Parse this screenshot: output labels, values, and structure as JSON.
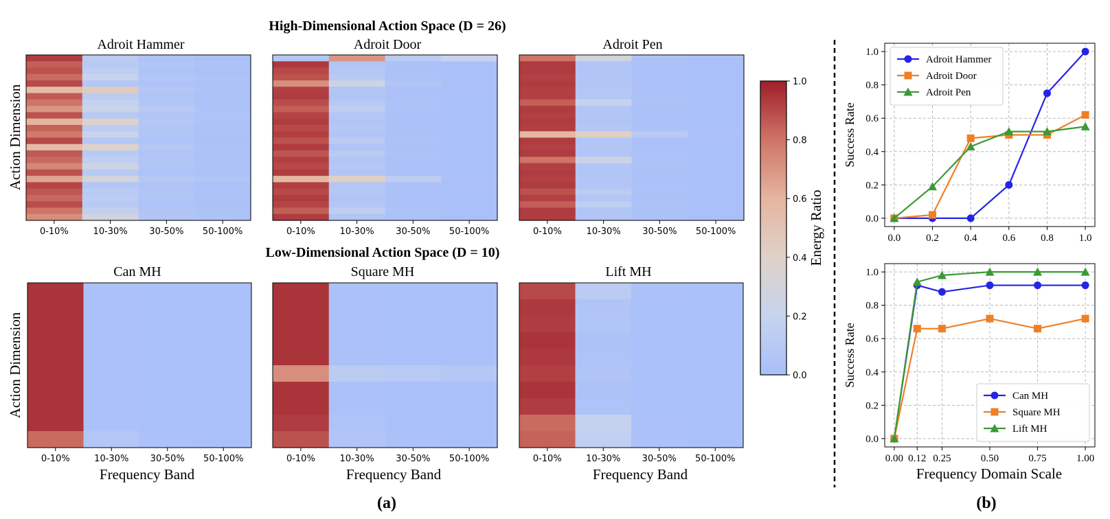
{
  "panel_a": {
    "label": "(a)",
    "high_title": "High-Dimensional Action Space (D = 26)",
    "low_title": "Low-Dimensional Action Space (D = 10)",
    "ylabel": "Action Dimension",
    "xlabel": "Frequency Band",
    "bands": [
      "0-10%",
      "10-30%",
      "30-50%",
      "50-100%"
    ]
  },
  "colorbar": {
    "label": "Energy Ratio",
    "ticks": [
      "0.0",
      "0.2",
      "0.4",
      "0.6",
      "0.8",
      "1.0"
    ],
    "stops": [
      "#a8bff9",
      "#c7d3ee",
      "#dfd2c8",
      "#e5b5a0",
      "#cf7466",
      "#9e1e2b"
    ]
  },
  "panel_b": {
    "label": "(b)",
    "ylabel": "Success Rate",
    "xlabel": "Frequency Domain Scale",
    "colors": {
      "blue": "#2424e6",
      "orange": "#f07f24",
      "green": "#3a9a36"
    }
  },
  "chart_data": [
    {
      "type": "heatmap",
      "title": "Adroit Hammer",
      "rows": 26,
      "columns": [
        "0-10%",
        "10-30%",
        "30-50%",
        "50-100%"
      ],
      "values": [
        [
          0.93,
          0.12,
          0.04,
          0.02
        ],
        [
          0.85,
          0.1,
          0.06,
          0.03
        ],
        [
          0.88,
          0.14,
          0.04,
          0.02
        ],
        [
          0.82,
          0.2,
          0.06,
          0.04
        ],
        [
          0.9,
          0.08,
          0.04,
          0.02
        ],
        [
          0.55,
          0.45,
          0.07,
          0.04
        ],
        [
          0.86,
          0.12,
          0.05,
          0.03
        ],
        [
          0.8,
          0.18,
          0.06,
          0.03
        ],
        [
          0.7,
          0.22,
          0.1,
          0.04
        ],
        [
          0.88,
          0.1,
          0.06,
          0.04
        ],
        [
          0.6,
          0.38,
          0.08,
          0.04
        ],
        [
          0.84,
          0.13,
          0.06,
          0.03
        ],
        [
          0.78,
          0.21,
          0.06,
          0.03
        ],
        [
          0.9,
          0.08,
          0.04,
          0.02
        ],
        [
          0.55,
          0.4,
          0.08,
          0.04
        ],
        [
          0.86,
          0.11,
          0.05,
          0.03
        ],
        [
          0.82,
          0.15,
          0.06,
          0.03
        ],
        [
          0.74,
          0.26,
          0.06,
          0.04
        ],
        [
          0.88,
          0.1,
          0.04,
          0.02
        ],
        [
          0.65,
          0.3,
          0.09,
          0.06
        ],
        [
          0.91,
          0.07,
          0.04,
          0.02
        ],
        [
          0.87,
          0.11,
          0.05,
          0.03
        ],
        [
          0.83,
          0.13,
          0.06,
          0.03
        ],
        [
          0.89,
          0.1,
          0.04,
          0.02
        ],
        [
          0.8,
          0.17,
          0.05,
          0.03
        ],
        [
          0.72,
          0.28,
          0.06,
          0.04
        ]
      ]
    },
    {
      "type": "heatmap",
      "title": "Adroit Door",
      "rows": 26,
      "columns": [
        "0-10%",
        "10-30%",
        "30-50%",
        "50-100%"
      ],
      "values": [
        [
          0.08,
          0.7,
          0.12,
          0.2
        ],
        [
          0.94,
          0.06,
          0.02,
          0.01
        ],
        [
          0.9,
          0.08,
          0.02,
          0.01
        ],
        [
          0.88,
          0.1,
          0.03,
          0.01
        ],
        [
          0.72,
          0.25,
          0.05,
          0.02
        ],
        [
          0.92,
          0.06,
          0.02,
          0.01
        ],
        [
          0.93,
          0.05,
          0.02,
          0.01
        ],
        [
          0.89,
          0.09,
          0.03,
          0.01
        ],
        [
          0.85,
          0.14,
          0.03,
          0.01
        ],
        [
          0.91,
          0.07,
          0.02,
          0.01
        ],
        [
          0.93,
          0.06,
          0.02,
          0.01
        ],
        [
          0.9,
          0.08,
          0.02,
          0.01
        ],
        [
          0.92,
          0.06,
          0.02,
          0.01
        ],
        [
          0.88,
          0.12,
          0.03,
          0.01
        ],
        [
          0.93,
          0.05,
          0.02,
          0.01
        ],
        [
          0.87,
          0.11,
          0.03,
          0.01
        ],
        [
          0.92,
          0.06,
          0.02,
          0.01
        ],
        [
          0.9,
          0.08,
          0.02,
          0.01
        ],
        [
          0.93,
          0.06,
          0.02,
          0.01
        ],
        [
          0.58,
          0.42,
          0.14,
          0.02
        ],
        [
          0.92,
          0.07,
          0.02,
          0.01
        ],
        [
          0.9,
          0.08,
          0.02,
          0.01
        ],
        [
          0.93,
          0.06,
          0.02,
          0.01
        ],
        [
          0.91,
          0.07,
          0.02,
          0.01
        ],
        [
          0.85,
          0.15,
          0.03,
          0.01
        ],
        [
          0.93,
          0.06,
          0.02,
          0.01
        ]
      ]
    },
    {
      "type": "heatmap",
      "title": "Adroit Pen",
      "rows": 26,
      "columns": [
        "0-10%",
        "10-30%",
        "30-50%",
        "50-100%"
      ],
      "values": [
        [
          0.8,
          0.28,
          0.03,
          0.01
        ],
        [
          0.93,
          0.06,
          0.02,
          0.01
        ],
        [
          0.93,
          0.06,
          0.02,
          0.01
        ],
        [
          0.92,
          0.07,
          0.02,
          0.01
        ],
        [
          0.93,
          0.06,
          0.02,
          0.01
        ],
        [
          0.92,
          0.07,
          0.02,
          0.01
        ],
        [
          0.92,
          0.08,
          0.02,
          0.01
        ],
        [
          0.85,
          0.2,
          0.03,
          0.01
        ],
        [
          0.93,
          0.06,
          0.02,
          0.01
        ],
        [
          0.92,
          0.07,
          0.02,
          0.01
        ],
        [
          0.93,
          0.06,
          0.02,
          0.01
        ],
        [
          0.92,
          0.08,
          0.03,
          0.01
        ],
        [
          0.58,
          0.42,
          0.1,
          0.02
        ],
        [
          0.93,
          0.06,
          0.02,
          0.01
        ],
        [
          0.92,
          0.07,
          0.02,
          0.01
        ],
        [
          0.93,
          0.06,
          0.02,
          0.01
        ],
        [
          0.8,
          0.25,
          0.03,
          0.01
        ],
        [
          0.92,
          0.07,
          0.02,
          0.01
        ],
        [
          0.93,
          0.06,
          0.02,
          0.01
        ],
        [
          0.92,
          0.07,
          0.02,
          0.01
        ],
        [
          0.93,
          0.06,
          0.02,
          0.01
        ],
        [
          0.88,
          0.12,
          0.03,
          0.01
        ],
        [
          0.92,
          0.07,
          0.02,
          0.01
        ],
        [
          0.85,
          0.15,
          0.03,
          0.01
        ],
        [
          0.93,
          0.06,
          0.02,
          0.01
        ],
        [
          0.93,
          0.06,
          0.02,
          0.01
        ]
      ]
    },
    {
      "type": "heatmap",
      "title": "Can MH",
      "rows": 10,
      "columns": [
        "0-10%",
        "10-30%",
        "30-50%",
        "50-100%"
      ],
      "values": [
        [
          0.95,
          0.02,
          0.01,
          0.01
        ],
        [
          0.95,
          0.02,
          0.01,
          0.01
        ],
        [
          0.95,
          0.02,
          0.01,
          0.01
        ],
        [
          0.95,
          0.02,
          0.01,
          0.01
        ],
        [
          0.95,
          0.02,
          0.01,
          0.01
        ],
        [
          0.95,
          0.02,
          0.01,
          0.01
        ],
        [
          0.95,
          0.02,
          0.01,
          0.01
        ],
        [
          0.95,
          0.02,
          0.01,
          0.01
        ],
        [
          0.95,
          0.02,
          0.01,
          0.01
        ],
        [
          0.82,
          0.07,
          0.02,
          0.01
        ]
      ]
    },
    {
      "type": "heatmap",
      "title": "Square MH",
      "rows": 10,
      "columns": [
        "0-10%",
        "10-30%",
        "30-50%",
        "50-100%"
      ],
      "values": [
        [
          0.95,
          0.02,
          0.01,
          0.01
        ],
        [
          0.95,
          0.02,
          0.01,
          0.01
        ],
        [
          0.95,
          0.02,
          0.01,
          0.01
        ],
        [
          0.95,
          0.02,
          0.01,
          0.01
        ],
        [
          0.95,
          0.02,
          0.01,
          0.01
        ],
        [
          0.72,
          0.12,
          0.1,
          0.08
        ],
        [
          0.95,
          0.02,
          0.01,
          0.01
        ],
        [
          0.95,
          0.02,
          0.01,
          0.01
        ],
        [
          0.93,
          0.04,
          0.01,
          0.01
        ],
        [
          0.88,
          0.06,
          0.02,
          0.01
        ]
      ]
    },
    {
      "type": "heatmap",
      "title": "Lift MH",
      "rows": 10,
      "columns": [
        "0-10%",
        "10-30%",
        "30-50%",
        "50-100%"
      ],
      "values": [
        [
          0.9,
          0.12,
          0.02,
          0.01
        ],
        [
          0.94,
          0.05,
          0.01,
          0.01
        ],
        [
          0.93,
          0.06,
          0.01,
          0.01
        ],
        [
          0.95,
          0.03,
          0.01,
          0.01
        ],
        [
          0.94,
          0.04,
          0.01,
          0.01
        ],
        [
          0.92,
          0.05,
          0.01,
          0.01
        ],
        [
          0.95,
          0.03,
          0.01,
          0.01
        ],
        [
          0.93,
          0.04,
          0.01,
          0.01
        ],
        [
          0.82,
          0.18,
          0.02,
          0.01
        ],
        [
          0.84,
          0.16,
          0.02,
          0.01
        ]
      ]
    },
    {
      "type": "line",
      "x": [
        0.0,
        0.2,
        0.4,
        0.6,
        0.8,
        1.0
      ],
      "xticks": [
        "0.0",
        "0.2",
        "0.4",
        "0.6",
        "0.8",
        "1.0"
      ],
      "yticks": [
        "0.0",
        "0.2",
        "0.4",
        "0.6",
        "0.8",
        "1.0"
      ],
      "xlim": [
        -0.05,
        1.05
      ],
      "ylim": [
        -0.05,
        1.05
      ],
      "xlabel": "",
      "ylabel": "Success Rate",
      "grid": true,
      "legend": "top-left",
      "series": [
        {
          "name": "Adroit Hammer",
          "color": "blue",
          "marker": "circle",
          "values": [
            0.0,
            0.0,
            0.0,
            0.2,
            0.75,
            1.0
          ]
        },
        {
          "name": "Adroit Door",
          "color": "orange",
          "marker": "square",
          "values": [
            0.0,
            0.02,
            0.48,
            0.5,
            0.5,
            0.62
          ]
        },
        {
          "name": "Adroit Pen",
          "color": "green",
          "marker": "triangle",
          "values": [
            0.0,
            0.19,
            0.43,
            0.52,
            0.52,
            0.55
          ]
        }
      ]
    },
    {
      "type": "line",
      "x": [
        0.0,
        0.12,
        0.25,
        0.5,
        0.75,
        1.0
      ],
      "xticks": [
        "0.00",
        "0.12",
        "0.25",
        "0.50",
        "0.75",
        "1.00"
      ],
      "yticks": [
        "0.0",
        "0.2",
        "0.4",
        "0.6",
        "0.8",
        "1.0"
      ],
      "xlim": [
        -0.05,
        1.05
      ],
      "ylim": [
        -0.05,
        1.05
      ],
      "xlabel": "Frequency Domain Scale",
      "ylabel": "Success Rate",
      "grid": true,
      "legend": "bottom-right",
      "series": [
        {
          "name": "Can MH",
          "color": "blue",
          "marker": "circle",
          "values": [
            0.0,
            0.92,
            0.88,
            0.92,
            0.92,
            0.92
          ]
        },
        {
          "name": "Square MH",
          "color": "orange",
          "marker": "square",
          "values": [
            0.0,
            0.66,
            0.66,
            0.72,
            0.66,
            0.72
          ]
        },
        {
          "name": "Lift MH",
          "color": "green",
          "marker": "triangle",
          "values": [
            0.0,
            0.94,
            0.98,
            1.0,
            1.0,
            1.0
          ]
        }
      ]
    }
  ]
}
